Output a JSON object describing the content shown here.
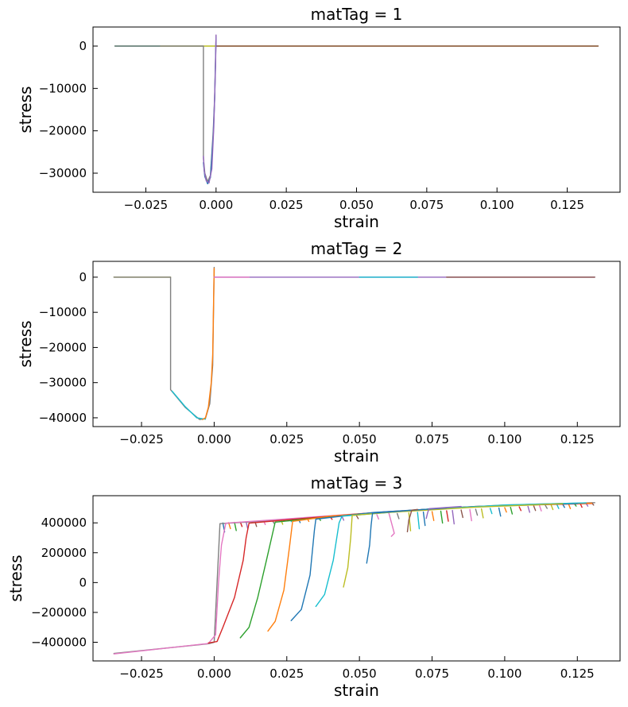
{
  "chart_data": [
    {
      "type": "line",
      "title": "matTag = 1",
      "xlabel": "strain",
      "ylabel": "stress",
      "xlim": [
        -0.0438,
        0.1438
      ],
      "ylim": [
        -34500,
        4500
      ],
      "xticks": [
        -0.025,
        0.0,
        0.025,
        0.05,
        0.075,
        0.1,
        0.125
      ],
      "xtick_labels": [
        "−0.025",
        "0.000",
        "0.025",
        "0.050",
        "0.075",
        "0.100",
        "0.125"
      ],
      "yticks": [
        0,
        -10000,
        -20000,
        -30000
      ],
      "ytick_labels": [
        "0",
        "−10000",
        "−20000",
        "−30000"
      ],
      "grid": false,
      "legend": "none",
      "series": [
        {
          "color": "#bcbd22",
          "x": [
            -0.036,
            -0.025,
            0.0,
            0.05,
            0.1,
            0.136
          ],
          "y": [
            0,
            0,
            0,
            0,
            0,
            0
          ]
        },
        {
          "color": "#17becf",
          "x": [
            -0.036,
            -0.03,
            -0.02
          ],
          "y": [
            0,
            0,
            0
          ]
        },
        {
          "color": "#8c564b",
          "x": [
            0.0,
            0.05,
            0.1,
            0.136
          ],
          "y": [
            0,
            0,
            0,
            0
          ]
        },
        {
          "color": "#7f7f7f",
          "x": [
            -0.036,
            -0.0045,
            -0.0045,
            -0.004,
            -0.003,
            -0.002,
            -0.001,
            -0.0005,
            0.0,
            0.0
          ],
          "y": [
            0,
            0,
            -26500,
            -30000,
            -32000,
            -30500,
            -20000,
            -12000,
            2500,
            0
          ]
        },
        {
          "color": "#1f77b4",
          "x": [
            -0.0045,
            -0.004,
            -0.003,
            -0.002,
            -0.001,
            -0.0005,
            0.0
          ],
          "y": [
            -27500,
            -30800,
            -32500,
            -31000,
            -21000,
            -12500,
            2000
          ]
        },
        {
          "color": "#9467bd",
          "x": [
            -0.0045,
            -0.0042,
            -0.0035,
            -0.0025,
            -0.0015,
            -0.0008,
            -0.0002,
            0.0
          ],
          "y": [
            -26000,
            -29500,
            -31800,
            -32300,
            -29000,
            -19000,
            -5000,
            2600
          ]
        }
      ]
    },
    {
      "type": "line",
      "title": "matTag = 2",
      "xlabel": "strain",
      "ylabel": "stress",
      "xlim": [
        -0.0417,
        0.1397
      ],
      "ylim": [
        -42500,
        4500
      ],
      "xticks": [
        -0.025,
        0.0,
        0.025,
        0.05,
        0.075,
        0.1,
        0.125
      ],
      "xtick_labels": [
        "−0.025",
        "0.000",
        "0.025",
        "0.050",
        "0.075",
        "0.100",
        "0.125"
      ],
      "yticks": [
        0,
        -10000,
        -20000,
        -30000,
        -40000
      ],
      "ytick_labels": [
        "0",
        "−10000",
        "−20000",
        "−30000",
        "−40000"
      ],
      "grid": false,
      "legend": "none",
      "series": [
        {
          "color": "#bcbd22",
          "x": [
            -0.0345,
            -0.02,
            -0.015
          ],
          "y": [
            0,
            0,
            0
          ]
        },
        {
          "color": "#7f7f7f",
          "x": [
            -0.0345,
            -0.015,
            -0.015,
            -0.01,
            -0.005,
            -0.003,
            -0.0015,
            -0.0005,
            0.0,
            0.0
          ],
          "y": [
            0,
            0,
            -32000,
            -37000,
            -40500,
            -40200,
            -36000,
            -25000,
            2800,
            0
          ]
        },
        {
          "color": "#17becf",
          "x": [
            -0.0145,
            -0.01,
            -0.006,
            -0.003
          ],
          "y": [
            -32400,
            -36800,
            -40000,
            -40400
          ]
        },
        {
          "color": "#ff7f0e",
          "x": [
            -0.004,
            -0.003,
            -0.002,
            -0.001,
            -0.0005,
            0.0
          ],
          "y": [
            -40500,
            -40000,
            -37000,
            -30000,
            -22000,
            2500
          ]
        },
        {
          "color": "#9467bd",
          "x": [
            0.0,
            0.04,
            0.08,
            0.131
          ],
          "y": [
            0,
            0,
            0,
            0
          ]
        },
        {
          "color": "#17becf",
          "x": [
            0.05,
            0.07
          ],
          "y": [
            0,
            0
          ]
        },
        {
          "color": "#8c564b",
          "x": [
            0.08,
            0.131
          ],
          "y": [
            0,
            0
          ]
        },
        {
          "color": "#e377c2",
          "x": [
            0.0,
            0.012
          ],
          "y": [
            0,
            0
          ]
        }
      ]
    },
    {
      "type": "line",
      "title": "matTag = 3",
      "xlabel": "strain",
      "ylabel": "stress",
      "xlim": [
        -0.0417,
        0.1397
      ],
      "ylim": [
        -525000,
        582000
      ],
      "xticks": [
        -0.025,
        0.0,
        0.025,
        0.05,
        0.075,
        0.1,
        0.125
      ],
      "xtick_labels": [
        "−0.025",
        "0.000",
        "0.025",
        "0.050",
        "0.075",
        "0.100",
        "0.125"
      ],
      "yticks": [
        400000,
        200000,
        0,
        -200000,
        -400000
      ],
      "ytick_labels": [
        "400000",
        "200000",
        "0",
        "−200000",
        "−400000"
      ],
      "grid": false,
      "legend": "none",
      "series": [
        {
          "color": "#7f7f7f",
          "x": [
            -0.0345,
            -0.002,
            0.0,
            0.002,
            0.02,
            0.05,
            0.08,
            0.11,
            0.131
          ],
          "y": [
            -475000,
            -410000,
            -400000,
            395000,
            415000,
            460000,
            500000,
            525000,
            535000
          ]
        },
        {
          "color": "#e377c2",
          "x": [
            -0.0345,
            -0.002,
            0.0005,
            0.0015,
            0.0025,
            0.004,
            0.06,
            0.062,
            0.061
          ],
          "y": [
            -478000,
            -408000,
            -350000,
            0,
            250000,
            398000,
            475000,
            330000,
            310000
          ]
        },
        {
          "color": "#d62728",
          "x": [
            -0.002,
            0.001,
            0.003,
            0.007,
            0.01,
            0.011,
            0.012,
            0.04,
            0.06,
            0.09,
            0.13
          ],
          "y": [
            -405000,
            -395000,
            -300000,
            -100000,
            150000,
            300000,
            398000,
            445000,
            475000,
            510000,
            530000
          ]
        },
        {
          "color": "#2ca02c",
          "x": [
            0.009,
            0.012,
            0.015,
            0.018,
            0.02,
            0.021,
            0.05,
            0.08,
            0.12
          ],
          "y": [
            -370000,
            -300000,
            -100000,
            150000,
            320000,
            405000,
            460000,
            500000,
            530000
          ]
        },
        {
          "color": "#ff7f0e",
          "x": [
            0.0185,
            0.021,
            0.024,
            0.026,
            0.027,
            0.04,
            0.065,
            0.1,
            0.13
          ],
          "y": [
            -325000,
            -260000,
            -50000,
            250000,
            410000,
            445000,
            480000,
            520000,
            532000
          ]
        },
        {
          "color": "#1f77b4",
          "x": [
            0.0265,
            0.03,
            0.033,
            0.0345,
            0.035,
            0.055,
            0.09,
            0.125
          ],
          "y": [
            -255000,
            -180000,
            50000,
            350000,
            425000,
            470000,
            510000,
            530000
          ]
        },
        {
          "color": "#17becf",
          "x": [
            0.035,
            0.038,
            0.041,
            0.043,
            0.044,
            0.07,
            0.1,
            0.128
          ],
          "y": [
            -160000,
            -80000,
            150000,
            400000,
            445000,
            485000,
            520000,
            534000
          ]
        },
        {
          "color": "#bcbd22",
          "x": [
            0.0445,
            0.046,
            0.047,
            0.0475,
            0.06,
            0.09,
            0.12
          ],
          "y": [
            -30000,
            100000,
            300000,
            450000,
            470000,
            505000,
            528000
          ]
        },
        {
          "color": "#1f77b4",
          "x": [
            0.0525,
            0.0535,
            0.054,
            0.0545,
            0.065,
            0.08
          ],
          "y": [
            130000,
            250000,
            380000,
            465000,
            480000,
            500000
          ]
        },
        {
          "color": "#8c564b",
          "x": [
            0.0665,
            0.067,
            0.0675,
            0.068,
            0.07
          ],
          "y": [
            340000,
            420000,
            450000,
            485000,
            490000
          ]
        },
        {
          "color": "#9467bd",
          "x": [
            0.073,
            0.0735,
            0.074,
            0.085
          ],
          "y": [
            430000,
            470000,
            495000,
            510000
          ]
        }
      ],
      "drops": {
        "x": [
          0.003,
          0.005,
          0.007,
          0.009,
          0.011,
          0.014,
          0.017,
          0.02,
          0.023,
          0.026,
          0.029,
          0.032,
          0.036,
          0.04,
          0.044,
          0.049,
          0.056,
          0.063,
          0.067,
          0.07,
          0.072,
          0.075,
          0.078,
          0.08,
          0.082,
          0.085,
          0.088,
          0.09,
          0.092,
          0.095,
          0.098,
          0.1,
          0.102,
          0.105,
          0.108,
          0.11,
          0.112,
          0.114,
          0.116,
          0.118,
          0.12,
          0.122,
          0.124,
          0.126,
          0.128,
          0.13
        ],
        "depth": [
          60000,
          40000,
          55000,
          30000,
          50000,
          35000,
          25000,
          20000,
          30000,
          15000,
          25000,
          20000,
          18000,
          15000,
          25000,
          20000,
          30000,
          35000,
          120000,
          110000,
          90000,
          60000,
          80000,
          70000,
          90000,
          50000,
          75000,
          40000,
          60000,
          35000,
          55000,
          30000,
          45000,
          25000,
          40000,
          30000,
          35000,
          20000,
          30000,
          25000,
          20000,
          30000,
          15000,
          25000,
          20000,
          15000
        ],
        "colors": [
          "#1f77b4",
          "#ff7f0e",
          "#2ca02c",
          "#d62728",
          "#9467bd",
          "#8c564b",
          "#e377c2",
          "#7f7f7f",
          "#bcbd22",
          "#17becf"
        ]
      }
    }
  ]
}
